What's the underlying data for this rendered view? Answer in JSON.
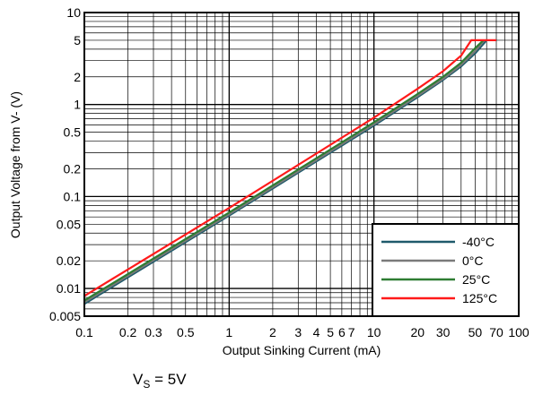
{
  "chart_data": {
    "type": "line",
    "xlabel": "Output Sinking Current (mA)",
    "ylabel": "Output Voltage from V- (V)",
    "x_scale": "log",
    "y_scale": "log",
    "xlim": [
      0.1,
      100
    ],
    "ylim": [
      0.005,
      10
    ],
    "x_ticks": [
      {
        "value": 0.1,
        "label": "0.1"
      },
      {
        "value": 0.2,
        "label": "0.2"
      },
      {
        "value": 0.3,
        "label": "0.3"
      },
      {
        "value": 0.5,
        "label": "0.5"
      },
      {
        "value": 1,
        "label": "1"
      },
      {
        "value": 2,
        "label": "2"
      },
      {
        "value": 3,
        "label": "3"
      },
      {
        "value": 4,
        "label": "4"
      },
      {
        "value": 5,
        "label": "5"
      },
      {
        "value": 6,
        "label": "6"
      },
      {
        "value": 7,
        "label": "7"
      },
      {
        "value": 10,
        "label": "10"
      },
      {
        "value": 20,
        "label": "20"
      },
      {
        "value": 30,
        "label": "30"
      },
      {
        "value": 50,
        "label": "50"
      },
      {
        "value": 70,
        "label": "70"
      },
      {
        "value": 100,
        "label": "100"
      }
    ],
    "y_ticks": [
      {
        "value": 0.005,
        "label": "0.005"
      },
      {
        "value": 0.01,
        "label": "0.01"
      },
      {
        "value": 0.02,
        "label": "0.02"
      },
      {
        "value": 0.05,
        "label": "0.05"
      },
      {
        "value": 0.1,
        "label": "0.1"
      },
      {
        "value": 0.2,
        "label": "0.2"
      },
      {
        "value": 0.5,
        "label": "0.5"
      },
      {
        "value": 1,
        "label": "1"
      },
      {
        "value": 2,
        "label": "2"
      },
      {
        "value": 5,
        "label": "5"
      },
      {
        "value": 10,
        "label": "10"
      }
    ],
    "grid": true,
    "legend": "bottom-right",
    "series": [
      {
        "name": "-40°C",
        "color": "#1f5a6b",
        "points": [
          [
            0.1,
            0.0068
          ],
          [
            1,
            0.062
          ],
          [
            10,
            0.59
          ],
          [
            20,
            1.2
          ],
          [
            30,
            1.85
          ],
          [
            40,
            2.6
          ],
          [
            50,
            3.6
          ],
          [
            60,
            5.0
          ]
        ]
      },
      {
        "name": "0°C",
        "color": "#7a7a7a",
        "points": [
          [
            0.1,
            0.0071
          ],
          [
            1,
            0.064
          ],
          [
            10,
            0.61
          ],
          [
            20,
            1.24
          ],
          [
            30,
            1.9
          ],
          [
            40,
            2.7
          ],
          [
            50,
            3.8
          ],
          [
            58,
            5.0
          ]
        ]
      },
      {
        "name": "25°C",
        "color": "#2e7d32",
        "points": [
          [
            0.1,
            0.0074
          ],
          [
            1,
            0.067
          ],
          [
            10,
            0.64
          ],
          [
            20,
            1.3
          ],
          [
            30,
            2.0
          ],
          [
            40,
            2.85
          ],
          [
            50,
            4.1
          ],
          [
            57,
            5.0
          ]
        ]
      },
      {
        "name": "125°C",
        "color": "#ff1a1a",
        "points": [
          [
            0.1,
            0.0083
          ],
          [
            1,
            0.075
          ],
          [
            10,
            0.72
          ],
          [
            20,
            1.48
          ],
          [
            30,
            2.3
          ],
          [
            40,
            3.4
          ],
          [
            47,
            5.0
          ],
          [
            70,
            5.0
          ]
        ]
      }
    ]
  },
  "caption": {
    "main": "V",
    "sub": "S",
    "rest": " = 5V"
  }
}
